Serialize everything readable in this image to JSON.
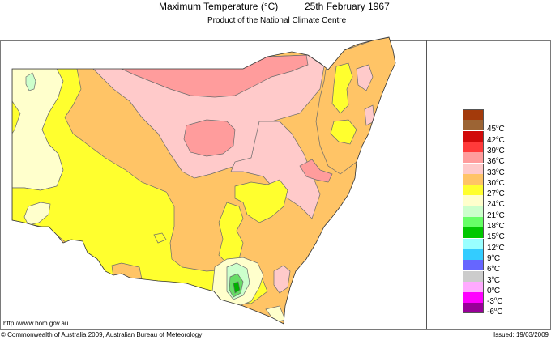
{
  "header": {
    "title": "Maximum Temperature (°C)",
    "date": "25th February 1967",
    "subtitle": "Product of the National Climate Centre"
  },
  "footer": {
    "url": "http://www.bom.gov.au",
    "copyright": "© Commonwealth of Australia 2009, Australian Bureau of Meteorology",
    "issued": "Issued: 19/03/2009"
  },
  "legend": {
    "unit": "°C",
    "swatches": [
      {
        "color": "#a33a0b",
        "label": null
      },
      {
        "color": "#9c6434",
        "label": "45"
      },
      {
        "color": "#d10a0a",
        "label": "42"
      },
      {
        "color": "#ff3a3a",
        "label": "39"
      },
      {
        "color": "#ff9c9c",
        "label": "36"
      },
      {
        "color": "#ffcaca",
        "label": "33"
      },
      {
        "color": "#ffc466",
        "label": "30"
      },
      {
        "color": "#ffff2e",
        "label": "27"
      },
      {
        "color": "#ffffcc",
        "label": "24"
      },
      {
        "color": "#ccffcc",
        "label": "21"
      },
      {
        "color": "#66ff66",
        "label": "18"
      },
      {
        "color": "#00c800",
        "label": "15"
      },
      {
        "color": "#99ffff",
        "label": "12"
      },
      {
        "color": "#33ccff",
        "label": "9"
      },
      {
        "color": "#6666ff",
        "label": "6"
      },
      {
        "color": "#cccccc",
        "label": "3"
      },
      {
        "color": "#ffaaff",
        "label": "0"
      },
      {
        "color": "#ff00ff",
        "label": "-3"
      },
      {
        "color": "#990099",
        "label": "-6"
      }
    ]
  },
  "map": {
    "region": "New South Wales",
    "colors": {
      "band_21_24": "#ccffcc",
      "band_24_27": "#ffffcc",
      "band_27_30": "#ffff2e",
      "band_30_33": "#ffc466",
      "band_33_36": "#ffcaca",
      "band_36_39": "#ff9c9c",
      "band_15_18": "#66dd66",
      "band_12_15": "#00b000",
      "outline": "#555555"
    }
  }
}
